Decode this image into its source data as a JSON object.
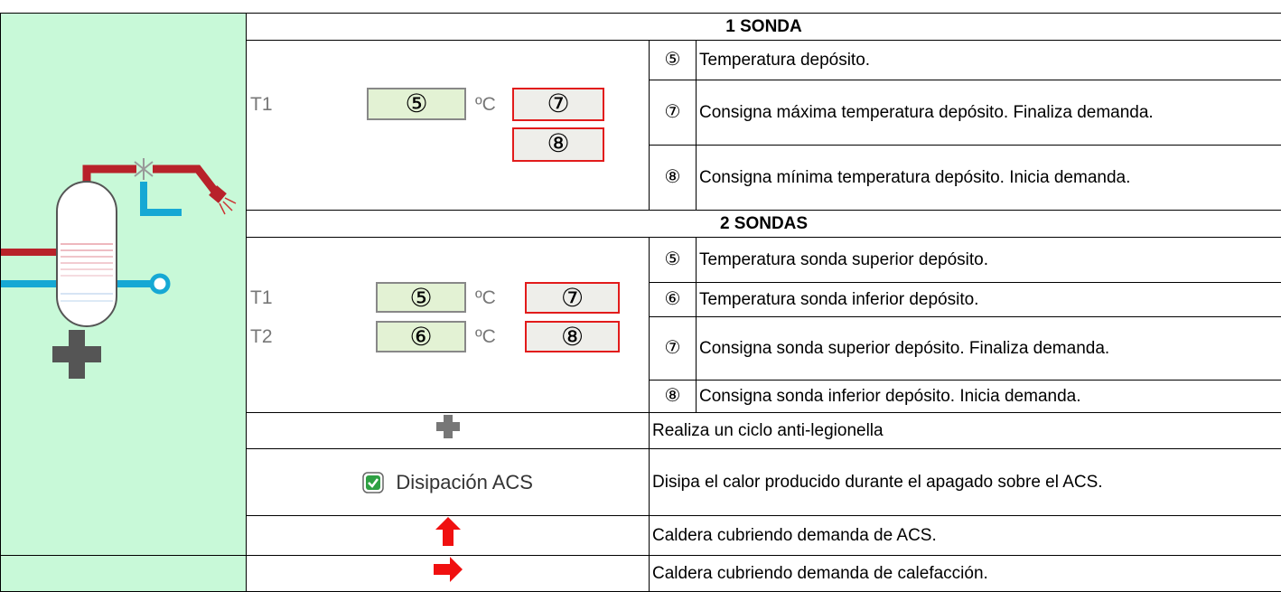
{
  "sections": [
    {
      "title": "1 SONDA",
      "display": [
        {
          "label": "T1",
          "value": "⑤",
          "unit": "ºC",
          "setpoint": "⑦"
        },
        {
          "setpoint": "⑧"
        }
      ],
      "items": [
        {
          "marker": "⑤",
          "text": "Temperatura depósito."
        },
        {
          "marker": "⑦",
          "text": "Consigna máxima temperatura depósito. Finaliza demanda."
        },
        {
          "marker": "⑧",
          "text": "Consigna mínima temperatura depósito. Inicia demanda."
        }
      ]
    },
    {
      "title": "2 SONDAS",
      "display": [
        {
          "label": "T1",
          "value": "⑤",
          "unit": "ºC",
          "setpoint": "⑦"
        },
        {
          "label": "T2",
          "value": "⑥",
          "unit": "ºC",
          "setpoint": "⑧"
        }
      ],
      "items": [
        {
          "marker": "⑤",
          "text": "Temperatura sonda superior depósito."
        },
        {
          "marker": "⑥",
          "text": "Temperatura sonda inferior depósito."
        },
        {
          "marker": "⑦",
          "text": "Consigna sonda superior depósito. Finaliza demanda."
        },
        {
          "marker": "⑧",
          "text": "Consigna sonda inferior depósito. Inicia demanda."
        }
      ]
    }
  ],
  "extras": [
    {
      "text": "Realiza un ciclo anti-legionella"
    },
    {
      "checkbox_label": "Disipación ACS",
      "text": "Disipa el calor producido durante el apagado sobre el ACS."
    },
    {
      "text": "Caldera cubriendo demanda de ACS."
    },
    {
      "text": "Caldera cubriendo demanda de calefacción."
    }
  ]
}
